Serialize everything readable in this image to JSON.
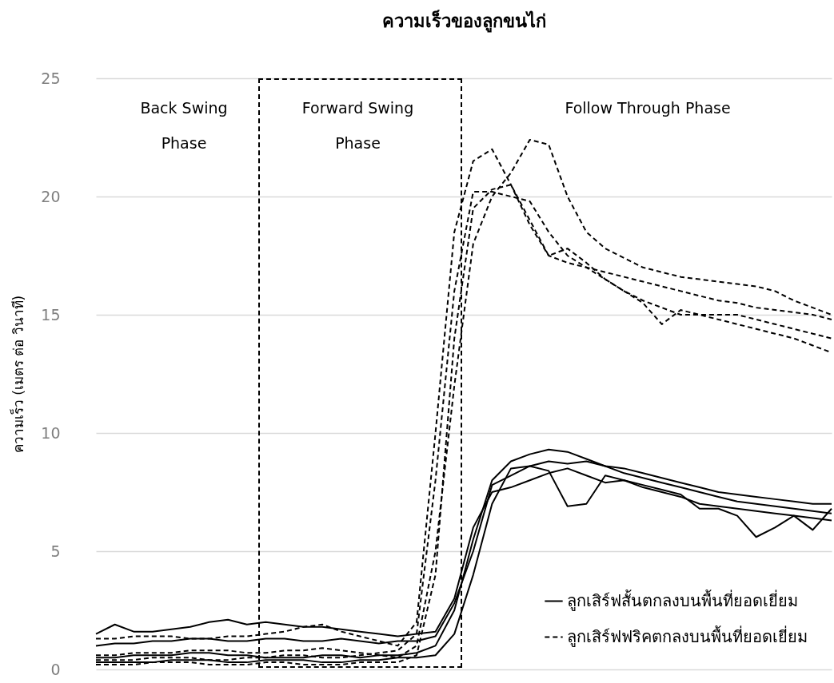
{
  "chart_data": {
    "type": "line",
    "title": "ความเร็วของลูกขนไก่",
    "ylabel": "ความเร็ว (เมตร ต่อ วินาที)",
    "annotations": [
      "Back Swing Phase",
      "Forward Swing Phase",
      "Follow Through Phase"
    ],
    "categories": [
      null,
      null,
      null,
      null,
      null,
      null,
      null,
      null,
      null,
      null,
      null,
      null,
      null,
      null,
      null,
      null,
      null,
      null,
      null,
      null,
      null,
      null,
      null,
      null,
      null,
      null,
      null,
      null,
      null,
      null,
      null,
      null,
      null,
      null,
      null,
      null,
      null,
      null,
      null,
      null
    ],
    "ylim": [
      0,
      25
    ],
    "yticks": [
      0,
      5,
      10,
      15,
      20,
      25
    ],
    "grid": "y",
    "legend": "bottom right",
    "tick_labels": "y",
    "series": [
      {
        "name": "ลูกเสิร์ฟสั้นตกลงบนพื้นที่ยอดเยี่ยม",
        "color": "#000000",
        "line_style": "solid",
        "values": [
          0.5,
          0.5,
          0.6,
          0.6,
          0.6,
          0.7,
          0.7,
          0.6,
          0.6,
          0.5,
          0.5,
          0.5,
          0.6,
          0.6,
          0.5,
          0.6,
          0.6,
          0.7,
          1.0,
          2.5,
          5.5,
          8.0,
          8.8,
          9.1,
          9.3,
          9.2,
          8.9,
          8.6,
          8.3,
          8.1,
          7.9,
          7.7,
          7.5,
          7.3,
          7.1,
          7.0,
          6.9,
          6.8,
          6.7,
          6.6
        ]
      },
      {
        "color": "#000000",
        "line_style": "solid",
        "values": [
          1.5,
          1.9,
          1.6,
          1.6,
          1.7,
          1.8,
          2.0,
          2.1,
          1.9,
          2.0,
          1.9,
          1.8,
          1.8,
          1.7,
          1.6,
          1.5,
          1.4,
          1.5,
          1.6,
          3.0,
          6.0,
          7.5,
          7.7,
          8.0,
          8.3,
          8.5,
          8.2,
          7.9,
          8.0,
          7.7,
          7.5,
          7.3,
          7.0,
          6.9,
          6.8,
          6.7,
          6.6,
          6.5,
          6.4,
          6.3
        ]
      },
      {
        "color": "#000000",
        "line_style": "solid",
        "values": [
          0.3,
          0.3,
          0.3,
          0.3,
          0.4,
          0.4,
          0.4,
          0.3,
          0.3,
          0.4,
          0.4,
          0.4,
          0.3,
          0.3,
          0.4,
          0.4,
          0.5,
          0.5,
          0.6,
          1.5,
          4.0,
          7.0,
          8.5,
          8.6,
          8.4,
          6.9,
          7.0,
          8.2,
          8.0,
          7.8,
          7.6,
          7.4,
          6.8,
          6.8,
          6.5,
          5.6,
          6.0,
          6.5,
          5.9,
          6.8
        ]
      },
      {
        "color": "#000000",
        "line_style": "solid",
        "values": [
          1.0,
          1.1,
          1.1,
          1.2,
          1.2,
          1.3,
          1.3,
          1.2,
          1.2,
          1.3,
          1.3,
          1.2,
          1.2,
          1.3,
          1.2,
          1.1,
          1.2,
          1.2,
          1.4,
          2.8,
          5.0,
          7.8,
          8.2,
          8.6,
          8.8,
          8.7,
          8.8,
          8.6,
          8.5,
          8.3,
          8.1,
          7.9,
          7.7,
          7.5,
          7.4,
          7.3,
          7.2,
          7.1,
          7.0,
          7.0
        ]
      },
      {
        "name": "ลูกเสิร์ฟฟริคตกลงบนพื้นที่ยอดเยี่ยม",
        "color": "#000000",
        "line_style": "dashed",
        "values": [
          0.4,
          0.4,
          0.4,
          0.5,
          0.5,
          0.5,
          0.4,
          0.4,
          0.5,
          0.5,
          0.6,
          0.6,
          0.5,
          0.5,
          0.6,
          0.7,
          0.8,
          1.5,
          8.0,
          16.0,
          20.2,
          20.2,
          20.0,
          19.8,
          18.5,
          17.5,
          17.0,
          16.8,
          16.6,
          16.4,
          16.2,
          16.0,
          15.8,
          15.6,
          15.5,
          15.3,
          15.2,
          15.1,
          15.0,
          14.8
        ]
      },
      {
        "color": "#000000",
        "line_style": "dashed",
        "values": [
          1.3,
          1.3,
          1.4,
          1.4,
          1.4,
          1.3,
          1.3,
          1.4,
          1.4,
          1.5,
          1.6,
          1.8,
          1.9,
          1.6,
          1.4,
          1.2,
          1.0,
          2.0,
          10.0,
          18.5,
          21.5,
          22.0,
          20.5,
          18.8,
          17.5,
          17.2,
          17.0,
          16.5,
          16.0,
          15.6,
          15.3,
          15.0,
          15.0,
          15.0,
          15.0,
          14.8,
          14.6,
          14.4,
          14.2,
          14.0
        ]
      },
      {
        "color": "#000000",
        "line_style": "dashed",
        "values": [
          0.6,
          0.6,
          0.7,
          0.7,
          0.7,
          0.8,
          0.8,
          0.8,
          0.7,
          0.7,
          0.8,
          0.8,
          0.9,
          0.8,
          0.7,
          0.6,
          0.5,
          1.0,
          5.0,
          12.0,
          18.0,
          20.0,
          21.0,
          22.4,
          22.2,
          20.0,
          18.5,
          17.8,
          17.4,
          17.0,
          16.8,
          16.6,
          16.5,
          16.4,
          16.3,
          16.2,
          16.0,
          15.6,
          15.3,
          15.0
        ]
      },
      {
        "color": "#000000",
        "line_style": "dashed",
        "values": [
          0.2,
          0.2,
          0.2,
          0.3,
          0.3,
          0.3,
          0.2,
          0.2,
          0.2,
          0.3,
          0.3,
          0.2,
          0.2,
          0.2,
          0.3,
          0.3,
          0.3,
          0.6,
          4.0,
          14.0,
          19.5,
          20.3,
          20.5,
          19.0,
          17.5,
          17.8,
          17.2,
          16.5,
          16.0,
          15.5,
          14.6,
          15.2,
          15.0,
          14.8,
          14.6,
          14.4,
          14.2,
          14.0,
          13.7,
          13.4
        ]
      }
    ]
  }
}
